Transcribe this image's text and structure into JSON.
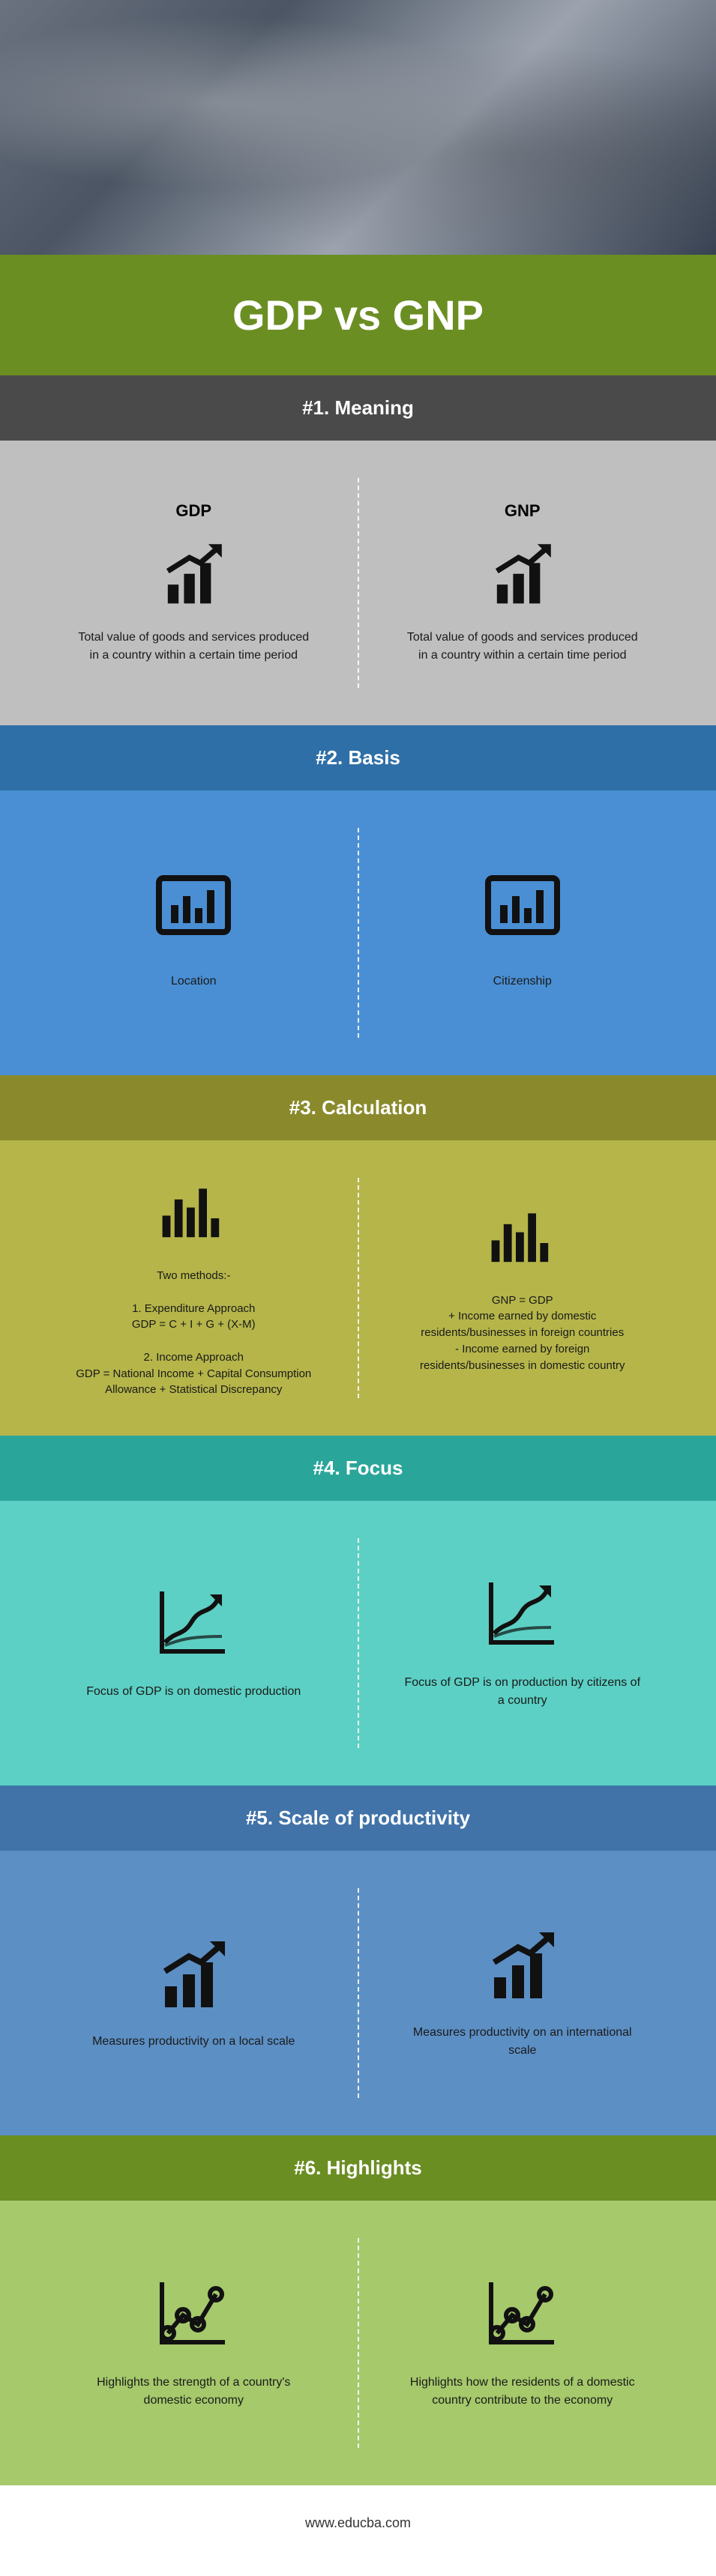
{
  "hero_alt": "People collaborating around a laptop with dashboards",
  "title": "GDP vs GNP",
  "footer": "www.educba.com",
  "columns": {
    "left_label": "GDP",
    "right_label": "GNP"
  },
  "sections": [
    {
      "id": "meaning",
      "header_label": "#1. Meaning",
      "header_bg": "#4a4a4a",
      "body_bg": "#bfbfbf",
      "divider": "light",
      "show_col_headings": true,
      "icon": "bar-arrow",
      "icon_size": 90,
      "left": "Total value of goods and services produced in a country within a certain time period",
      "right": "Total value of goods and services produced in a country within a certain time period"
    },
    {
      "id": "basis",
      "header_label": "#2. Basis",
      "header_bg": "#2f6fa7",
      "body_bg": "#4a8fd4",
      "divider": "light",
      "show_col_headings": false,
      "icon": "bar-box",
      "icon_size": 100,
      "left": "Location",
      "right": "Citizenship"
    },
    {
      "id": "calculation",
      "header_label": "#3. Calculation",
      "header_bg": "#8a8a2d",
      "body_bg": "#b5b54a",
      "divider": "light",
      "show_col_headings": false,
      "icon": "bars-mixed",
      "icon_size": 90,
      "left": "Two methods:-\n\n1. Expenditure Approach\nGDP = C + I + G + (X-M)\n\n2. Income Approach\nGDP = National Income + Capital Consumption Allowance + Statistical Discrepancy",
      "right": "GNP = GDP\n+ Income earned by domestic residents/businesses in foreign countries\n- Income earned by foreign residents/businesses in domestic country"
    },
    {
      "id": "focus",
      "header_label": "#4. Focus",
      "header_bg": "#2aa59a",
      "body_bg": "#5cd0c4",
      "divider": "light",
      "show_col_headings": false,
      "icon": "line-chart",
      "icon_size": 100,
      "left": "Focus of GDP is on domestic production",
      "right": "Focus of GDP is on production by citizens of a country"
    },
    {
      "id": "scale",
      "header_label": "#5. Scale of productivity",
      "header_bg": "#4173a8",
      "body_bg": "#5c8fc4",
      "divider": "light",
      "show_col_headings": false,
      "icon": "bar-arrow",
      "icon_size": 100,
      "left": "Measures productivity on a local scale",
      "right": "Measures productivity on an international scale"
    },
    {
      "id": "highlights",
      "header_label": "#6. Highlights",
      "header_bg": "#6B8E23",
      "body_bg": "#a5c96b",
      "divider": "light",
      "show_col_headings": false,
      "icon": "scatter-line",
      "icon_size": 100,
      "left": "Highlights the strength of a country's domestic economy",
      "right": "Highlights how the residents of a domestic country contribute to the economy"
    }
  ]
}
